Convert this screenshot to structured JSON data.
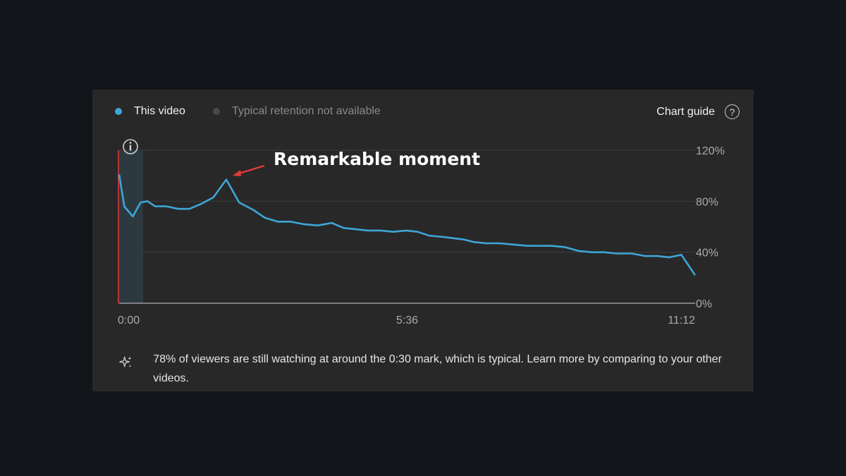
{
  "legend": {
    "this_video": "This video",
    "typical": "Typical retention not available",
    "this_color": "#3ea6d6",
    "typical_color": "#4a4a4a"
  },
  "chart_guide_label": "Chart guide",
  "help_icon": "question-circle-icon",
  "annotation": {
    "text": "Remarkable moment",
    "arrow_color": "#e53935"
  },
  "info_icon": "info-circle-icon",
  "insight": {
    "icon": "sparkle-icon",
    "text": "78% of viewers are still watching at around the 0:30 mark, which is typical. Learn more by comparing to your other videos."
  },
  "chart_data": {
    "type": "line",
    "series": [
      {
        "color": "#3ea6d6",
        "x_seconds": [
          0,
          6,
          16,
          25,
          33,
          42,
          55,
          69,
          82,
          96,
          110,
          125,
          140,
          157,
          170,
          185,
          200,
          215,
          232,
          248,
          262,
          276,
          290,
          305,
          320,
          335,
          348,
          362,
          378,
          390,
          402,
          414,
          428,
          444,
          460,
          476,
          490,
          504,
          520,
          536,
          552,
          566,
          580,
          598,
          614,
          628,
          642,
          656,
          672
        ],
        "values": [
          101,
          76,
          68,
          79,
          80,
          76,
          76,
          74,
          74,
          78,
          83,
          97,
          79,
          73,
          67,
          64,
          64,
          62,
          61,
          63,
          59,
          58,
          57,
          57,
          56,
          57,
          56,
          53,
          52,
          51,
          50,
          48,
          47,
          47,
          46,
          45,
          45,
          45,
          44,
          41,
          40,
          40,
          39,
          39,
          37,
          37,
          36,
          38,
          22
        ]
      }
    ],
    "x_ticks": [
      "0:00",
      "5:36",
      "11:12"
    ],
    "y_ticks": [
      "0%",
      "40%",
      "80%",
      "120%"
    ],
    "x_range_seconds": [
      0,
      672
    ],
    "y_range": [
      0,
      120
    ],
    "highlight_range_seconds": [
      0,
      28
    ],
    "marker_color": "#e53935",
    "grid": true
  }
}
